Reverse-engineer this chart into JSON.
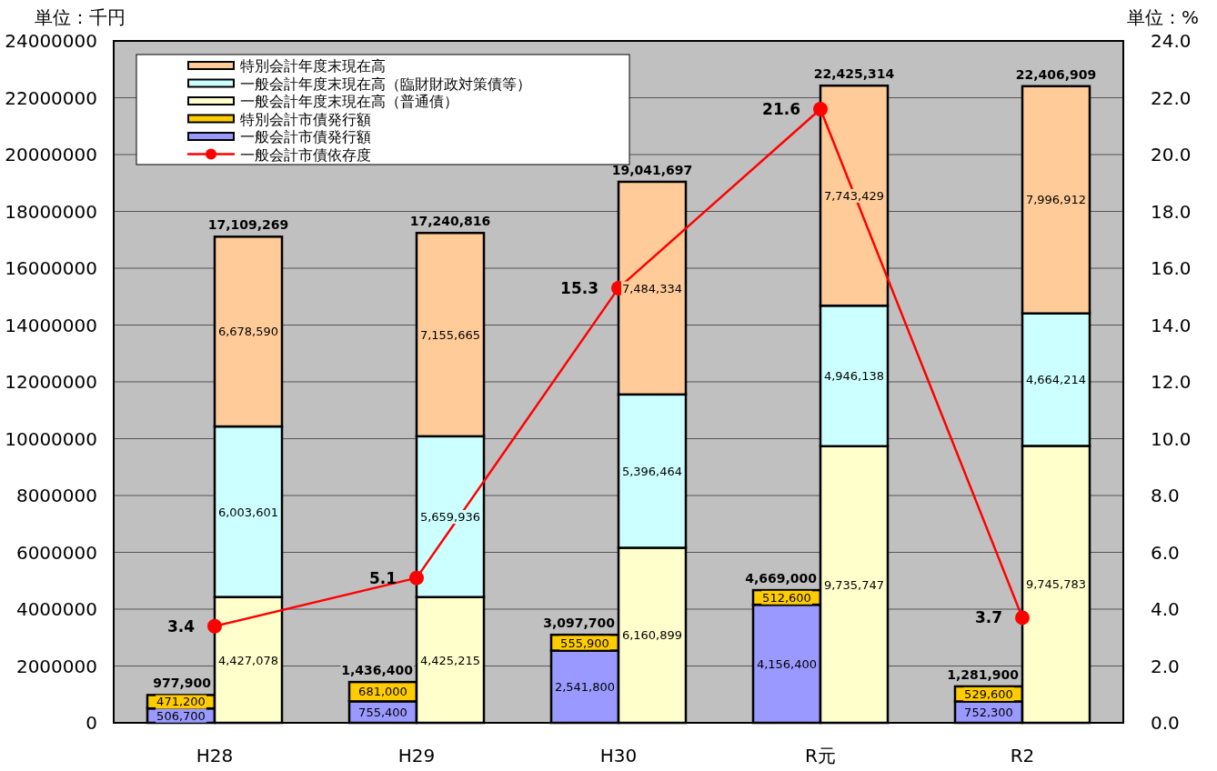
{
  "chart_data": [
    {
      "type": "bar",
      "stacked": true,
      "categories": [
        "H28",
        "H29",
        "H30",
        "R元",
        "R2"
      ],
      "ylabel": "単位：千円",
      "ylim": [
        0,
        24000000
      ],
      "yticks": [
        0,
        2000000,
        4000000,
        6000000,
        8000000,
        10000000,
        12000000,
        14000000,
        16000000,
        18000000,
        20000000,
        22000000,
        24000000
      ],
      "grid": "y",
      "legend": "top left",
      "totals": [
        "977,900",
        "1,436,400",
        "3,097,700",
        "4,669,000",
        "1,281,900"
      ],
      "series": [
        {
          "name": "一般会計市債発行額",
          "color": "#9999ff",
          "values": [
            506700,
            755400,
            2541800,
            4156400,
            752300
          ],
          "value_labels": [
            "506,700",
            "755,400",
            "2,541,800",
            "4,156,400",
            "752,300"
          ]
        },
        {
          "name": "特別会計市債発行額",
          "color": "#ffcc00",
          "values": [
            471200,
            681000,
            555900,
            512600,
            529600
          ],
          "value_labels": [
            "471,200",
            "681,000",
            "555,900",
            "512,600",
            "529,600"
          ]
        }
      ]
    },
    {
      "type": "bar",
      "stacked": true,
      "categories": [
        null,
        null,
        null,
        null,
        null
      ],
      "ylim": [
        0,
        24000000
      ],
      "y2label": "単位：%",
      "y2lim": [
        0,
        24
      ],
      "y2ticks": [
        {
          "value": 0,
          "label": "0.0"
        },
        {
          "value": 2,
          "label": "2.0"
        },
        {
          "value": 4,
          "label": "4.0"
        },
        {
          "value": 6,
          "label": "6.0"
        },
        {
          "value": 8,
          "label": "8.0"
        },
        {
          "value": 10,
          "label": "10.0"
        },
        {
          "value": 12,
          "label": "12.0"
        },
        {
          "value": 14,
          "label": "14.0"
        },
        {
          "value": 16,
          "label": "16.0"
        },
        {
          "value": 18,
          "label": "18.0"
        },
        {
          "value": 20,
          "label": "20.0"
        },
        {
          "value": 22,
          "label": "22.0"
        },
        {
          "value": 24,
          "label": "24.0"
        }
      ],
      "legend": "top left",
      "totals": [
        "17,109,269",
        "17,240,816",
        "19,041,697",
        "22,425,314",
        "22,406,909"
      ],
      "series": [
        {
          "name": "一般会計年度末現在高（普通債）",
          "color": "#ffffcc",
          "values": [
            4427078,
            4425215,
            6160899,
            9735747,
            9745783
          ],
          "value_labels": [
            "4,427,078",
            "4,425,215",
            "6,160,899",
            "9,735,747",
            "9,745,783"
          ]
        },
        {
          "name": "一般会計年度末現在高（臨財財政対策債等）",
          "color": "#ccffff",
          "values": [
            6003601,
            5659936,
            5396464,
            4946138,
            4664214
          ],
          "value_labels": [
            "6,003,601",
            "5,659,936",
            "5,396,464",
            "4,946,138",
            "4,664,214"
          ]
        },
        {
          "name": "特別会計年度末現在高",
          "color": "#ffcc99",
          "values": [
            6678590,
            7155665,
            7484334,
            7743429,
            7996912
          ],
          "value_labels": [
            "6,678,590",
            "7,155,665",
            "7,484,334",
            "7,743,429",
            "7,996,912"
          ]
        },
        {
          "name": "一般会計市債依存度",
          "type": "line",
          "axis": "y2",
          "color": "#ff0000",
          "marker": "circle",
          "values": [
            3.4,
            5.1,
            15.3,
            21.6,
            3.7
          ],
          "value_labels": [
            "3.4",
            "5.1",
            "15.3",
            "21.6",
            "3.7"
          ]
        }
      ]
    }
  ]
}
